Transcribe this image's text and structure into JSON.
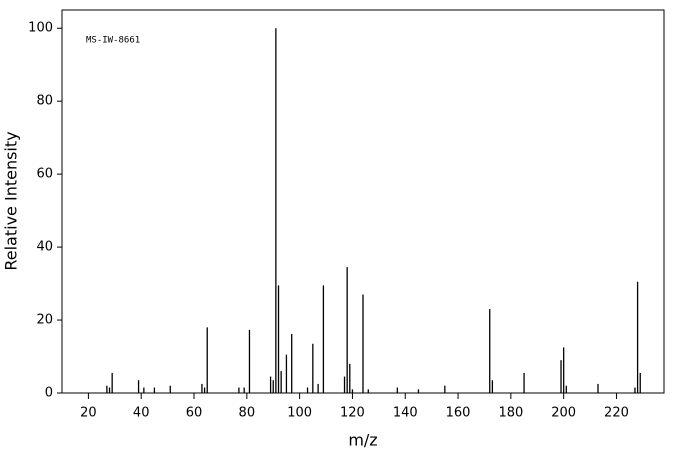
{
  "chart_data": {
    "type": "bar",
    "annotation": "MS-IW-8661",
    "xlabel": "m/z",
    "ylabel": "Relative Intensity",
    "x": [
      27,
      28,
      29,
      39,
      41,
      45,
      51,
      63,
      64,
      65,
      77,
      79,
      81,
      89,
      90,
      91,
      92,
      93,
      95,
      97,
      103,
      105,
      107,
      109,
      117,
      118,
      119,
      120,
      124,
      126,
      137,
      145,
      155,
      172,
      173,
      185,
      199,
      200,
      201,
      213,
      227,
      228,
      229
    ],
    "values": [
      2,
      1.5,
      5.5,
      3.5,
      1.5,
      1.5,
      2,
      2.5,
      1.5,
      18,
      1.5,
      1.5,
      17.3,
      4.5,
      3.5,
      100,
      29.5,
      6,
      10.5,
      16.2,
      1.5,
      13.5,
      2.5,
      29.5,
      4.5,
      34.5,
      8,
      1,
      27,
      1,
      1.5,
      1,
      2,
      23,
      3.5,
      5.5,
      9,
      12.5,
      2,
      2.5,
      1.5,
      30.5,
      5.5
    ],
    "color": "#000000",
    "xlim": [
      10,
      238
    ],
    "xticks": [
      20,
      40,
      60,
      80,
      100,
      120,
      140,
      160,
      180,
      200,
      220
    ],
    "ylim": [
      0,
      105
    ],
    "yticks": [
      0,
      20,
      40,
      60,
      80,
      100
    ]
  }
}
